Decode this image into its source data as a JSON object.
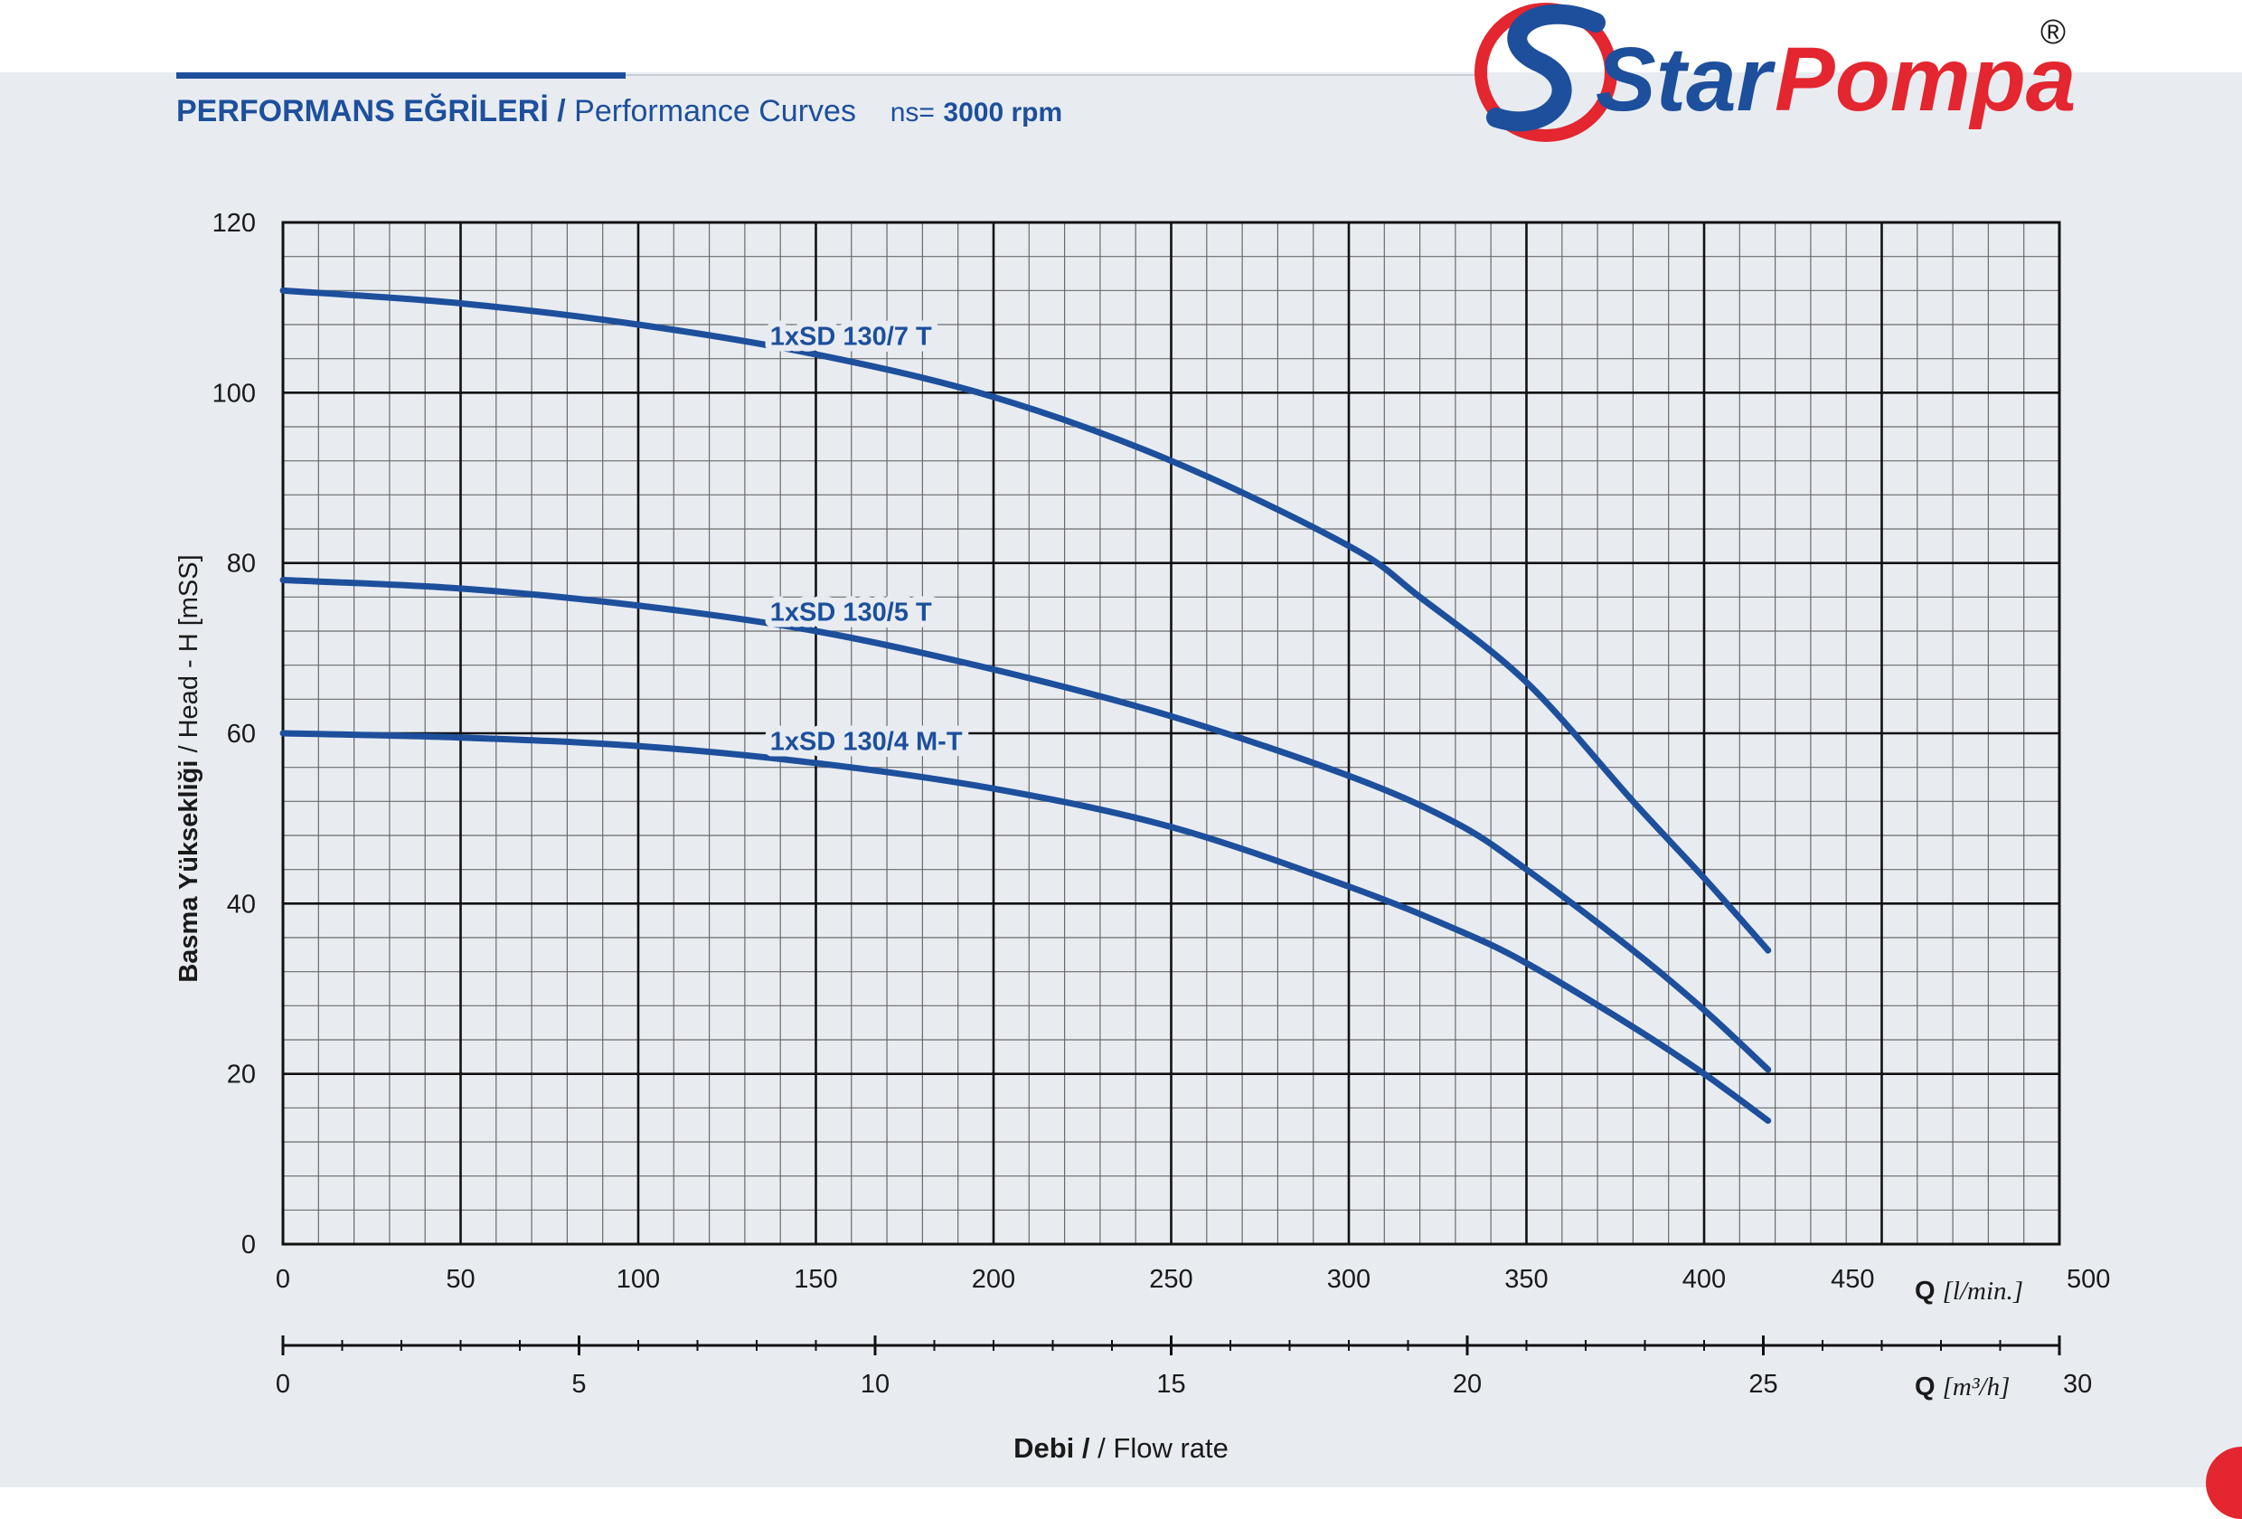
{
  "header": {
    "title_tr": "PERFORMANS EĞRİLERİ",
    "separator": "/",
    "title_en": "Performance Curves",
    "speed_label": "ns=",
    "speed_value": "3000 rpm"
  },
  "logo": {
    "brand_word1": "Star",
    "brand_word2": "Pompa",
    "registered": "®",
    "colors": {
      "blue": "#1d4f9c",
      "red": "#e3262f"
    }
  },
  "chart_data": {
    "type": "line",
    "ylabel_bold": "Basma Yüksekliği",
    "ylabel_rest": "/ Head - H [mSS]",
    "xlabel_bold": "Debi",
    "xlabel_rest": "/ Flow rate",
    "x_axis_lmin": {
      "label_q": "Q",
      "unit": "[l/min.]",
      "range": [
        0,
        500
      ],
      "ticks": [
        0,
        50,
        100,
        150,
        200,
        250,
        300,
        350,
        400,
        450,
        500
      ]
    },
    "x_axis_m3h": {
      "label_q": "Q",
      "unit": "[m³/h]",
      "range": [
        0,
        30
      ],
      "ticks": [
        0,
        5,
        10,
        15,
        20,
        25,
        30
      ]
    },
    "ylim": [
      0,
      120
    ],
    "yticks": [
      0,
      20,
      40,
      60,
      80,
      100,
      120
    ],
    "grid": true,
    "line_color": "#1d4f9c",
    "series": [
      {
        "name": "1xSD 130/7 T",
        "x": [
          0,
          50,
          100,
          150,
          200,
          250,
          300,
          320,
          350,
          380,
          400,
          418
        ],
        "y": [
          112,
          110.5,
          108,
          104.5,
          99.5,
          92,
          82,
          76,
          66,
          52,
          43,
          34.5
        ]
      },
      {
        "name": "1xSD 130/5 T",
        "x": [
          0,
          50,
          100,
          150,
          200,
          250,
          300,
          330,
          350,
          380,
          400,
          418
        ],
        "y": [
          78,
          77,
          75,
          72,
          67.5,
          62,
          55,
          49.5,
          44,
          34.5,
          27.5,
          20.5
        ]
      },
      {
        "name": "1xSD 130/4 M-T",
        "x": [
          0,
          50,
          100,
          150,
          200,
          250,
          300,
          330,
          350,
          380,
          400,
          418
        ],
        "y": [
          60,
          59.5,
          58.5,
          56.5,
          53.5,
          49,
          42,
          37,
          33,
          25.5,
          20,
          14.5
        ]
      }
    ]
  }
}
